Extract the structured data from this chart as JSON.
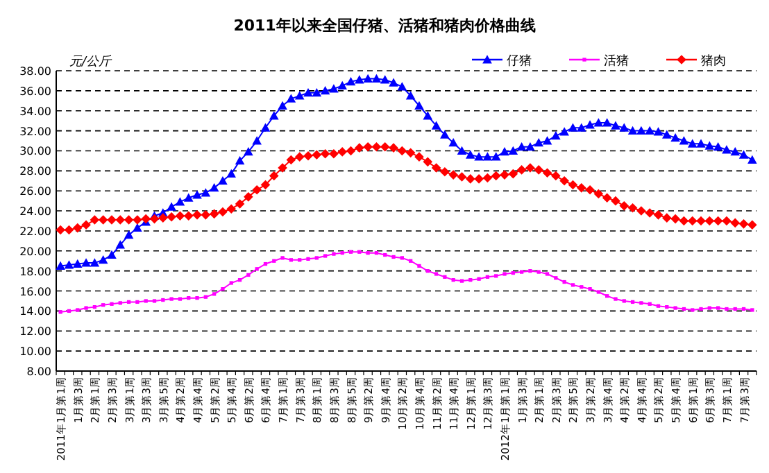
{
  "chart_data": {
    "type": "line",
    "title": "2011年以来全国仔猪、活猪和猪肉价格曲线",
    "ylabel": "元/公斤",
    "categories": [
      "2011年1月第1周",
      null,
      "1月第3周",
      null,
      "2月第1周",
      null,
      "2月第3周",
      null,
      "3月第1周",
      null,
      "3月第3周",
      null,
      "3月第5周",
      null,
      "4月第2周",
      null,
      "4月第4周",
      null,
      "5月第2周",
      null,
      "5月第4周",
      null,
      "6月第2周",
      null,
      "6月第4周",
      null,
      "7月第1周",
      null,
      "7月第3周",
      null,
      "8月第1周",
      null,
      "8月第3周",
      null,
      "8月第5周",
      null,
      "9月第2周",
      null,
      "9月第4周",
      null,
      "10月第2周",
      null,
      "10月第4周",
      null,
      "11月第2周",
      null,
      "11月第4周",
      null,
      "12月第1周",
      null,
      "12月第3周",
      null,
      "2012年1月第1周",
      null,
      "1月第3周",
      null,
      "2月第1周",
      null,
      "2月第3周",
      null,
      "2月第5周",
      null,
      "3月第2周",
      null,
      "3月第4周",
      null,
      "4月第2周",
      null,
      "4月第4周",
      null,
      "5月第2周",
      null,
      "5月第4周",
      null,
      "6月第1周",
      null,
      "6月第3周",
      null,
      "7月第1周",
      null,
      "7月第3周",
      null
    ],
    "series": [
      {
        "name": "仔猪",
        "color": "#0000ff",
        "marker": "triangle",
        "values": [
          18.5,
          18.6,
          18.7,
          18.8,
          18.8,
          19.1,
          19.6,
          20.6,
          21.6,
          22.3,
          22.9,
          23.5,
          23.8,
          24.4,
          24.9,
          25.3,
          25.6,
          25.8,
          26.3,
          27.0,
          27.7,
          29.0,
          29.9,
          31.0,
          32.3,
          33.5,
          34.5,
          35.2,
          35.5,
          35.8,
          35.8,
          36.0,
          36.2,
          36.5,
          36.9,
          37.1,
          37.2,
          37.2,
          37.1,
          36.8,
          36.4,
          35.5,
          34.5,
          33.5,
          32.5,
          31.6,
          30.8,
          30.0,
          29.6,
          29.4,
          29.4,
          29.4,
          29.9,
          30.0,
          30.4,
          30.4,
          30.8,
          31.0,
          31.5,
          31.9,
          32.3,
          32.3,
          32.6,
          32.8,
          32.8,
          32.5,
          32.3,
          32.0,
          32.0,
          32.0,
          31.9,
          31.6,
          31.3,
          31.0,
          30.7,
          30.7,
          30.5,
          30.4,
          30.1,
          29.9,
          29.6,
          29.1
        ]
      },
      {
        "name": "活猪",
        "color": "#ff00ff",
        "marker": "square",
        "values": [
          13.9,
          14.0,
          14.1,
          14.3,
          14.4,
          14.6,
          14.7,
          14.8,
          14.9,
          14.9,
          15.0,
          15.0,
          15.1,
          15.2,
          15.2,
          15.3,
          15.3,
          15.4,
          15.7,
          16.2,
          16.8,
          17.1,
          17.6,
          18.2,
          18.7,
          19.0,
          19.3,
          19.1,
          19.1,
          19.2,
          19.3,
          19.5,
          19.7,
          19.8,
          19.9,
          19.9,
          19.8,
          19.8,
          19.6,
          19.4,
          19.3,
          19.0,
          18.5,
          18.0,
          17.7,
          17.4,
          17.1,
          17.0,
          17.1,
          17.2,
          17.4,
          17.5,
          17.7,
          17.8,
          17.9,
          18.0,
          17.9,
          17.7,
          17.3,
          16.9,
          16.6,
          16.4,
          16.2,
          15.9,
          15.5,
          15.2,
          15.0,
          14.9,
          14.8,
          14.7,
          14.5,
          14.4,
          14.3,
          14.2,
          14.1,
          14.2,
          14.3,
          14.3,
          14.2,
          14.2,
          14.2,
          14.1
        ]
      },
      {
        "name": "猪肉",
        "color": "#ff0000",
        "marker": "diamond",
        "values": [
          22.1,
          22.1,
          22.3,
          22.6,
          23.1,
          23.1,
          23.1,
          23.1,
          23.1,
          23.1,
          23.2,
          23.2,
          23.3,
          23.4,
          23.5,
          23.5,
          23.6,
          23.6,
          23.7,
          23.9,
          24.2,
          24.7,
          25.4,
          26.1,
          26.6,
          27.5,
          28.3,
          29.1,
          29.4,
          29.5,
          29.6,
          29.7,
          29.7,
          29.9,
          30.0,
          30.3,
          30.4,
          30.4,
          30.4,
          30.3,
          30.0,
          29.8,
          29.4,
          28.9,
          28.3,
          27.9,
          27.6,
          27.4,
          27.2,
          27.2,
          27.3,
          27.5,
          27.6,
          27.7,
          28.1,
          28.3,
          28.1,
          27.8,
          27.5,
          27.0,
          26.6,
          26.3,
          26.1,
          25.7,
          25.3,
          25.0,
          24.5,
          24.3,
          24.0,
          23.8,
          23.6,
          23.3,
          23.2,
          23.0,
          23.0,
          23.0,
          23.0,
          23.0,
          23.0,
          22.8,
          22.7,
          22.6
        ]
      }
    ],
    "ylim": [
      8,
      38
    ],
    "yticks": [
      {
        "value": 8,
        "label": "8.00"
      },
      {
        "value": 10,
        "label": "10.00"
      },
      {
        "value": 12,
        "label": "12.00"
      },
      {
        "value": 14,
        "label": "14.00"
      },
      {
        "value": 16,
        "label": "16.00"
      },
      {
        "value": 18,
        "label": "18.00"
      },
      {
        "value": 20,
        "label": "20.00"
      },
      {
        "value": 22,
        "label": "22.00"
      },
      {
        "value": 24,
        "label": "24.00"
      },
      {
        "value": 26,
        "label": "26.00"
      },
      {
        "value": 28,
        "label": "28.00"
      },
      {
        "value": 30,
        "label": "30.00"
      },
      {
        "value": 32,
        "label": "32.00"
      },
      {
        "value": 34,
        "label": "34.00"
      },
      {
        "value": 36,
        "label": "36.00"
      },
      {
        "value": 38,
        "label": "38.00"
      }
    ],
    "grid": "y",
    "legend": "top right",
    "line_style": "solid"
  }
}
